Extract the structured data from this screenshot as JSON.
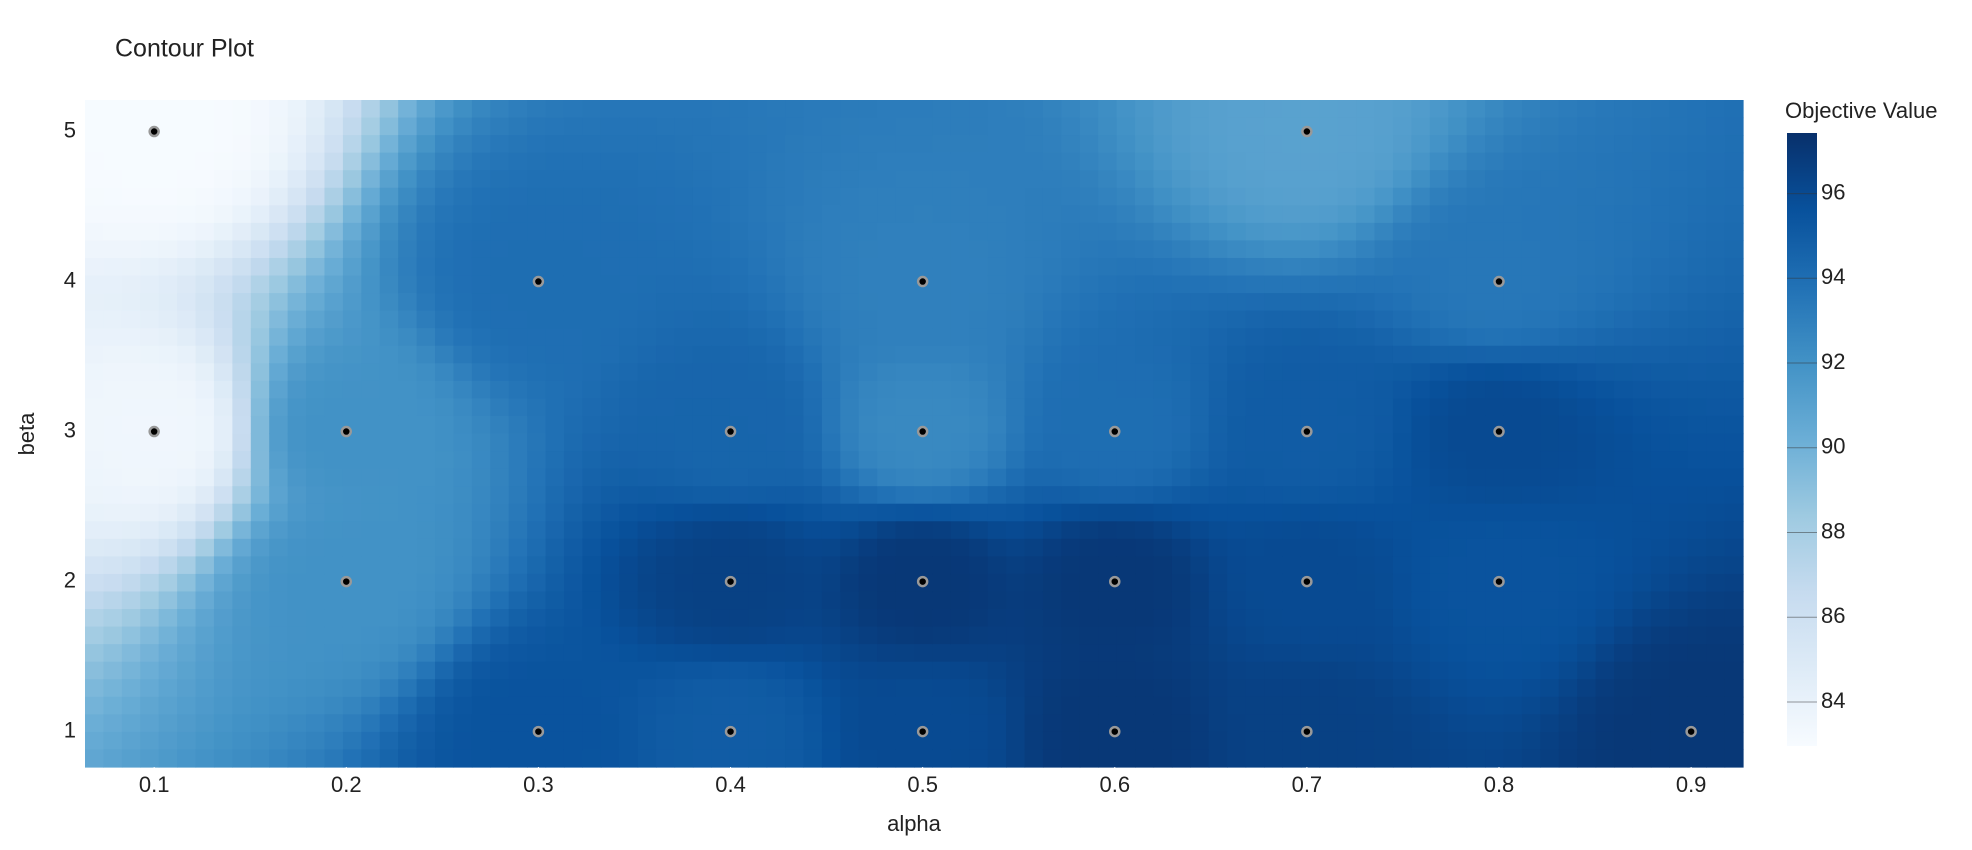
{
  "chart_data": {
    "type": "contour",
    "title": "Contour Plot",
    "x_label": "alpha",
    "y_label": "beta",
    "colorbar_title": "Objective Value",
    "x": [
      0.1,
      0.1,
      0.2,
      0.2,
      0.3,
      0.3,
      0.4,
      0.4,
      0.4,
      0.5,
      0.5,
      0.5,
      0.5,
      0.6,
      0.6,
      0.6,
      0.7,
      0.7,
      0.7,
      0.7,
      0.8,
      0.8,
      0.8,
      0.9
    ],
    "y": [
      5,
      3,
      3,
      2,
      4,
      1,
      3,
      2,
      1,
      4,
      3,
      2,
      1,
      3,
      2,
      1,
      5,
      3,
      2,
      1,
      4,
      3,
      2,
      1
    ],
    "z": [
      83,
      83.5,
      92,
      92,
      94,
      95.5,
      94.5,
      96.5,
      95,
      93,
      92.5,
      97,
      96,
      94,
      97,
      97,
      91,
      95,
      96,
      96.5,
      93.5,
      96,
      95.5,
      97
    ],
    "xlim": [
      0.064,
      0.927
    ],
    "ylim": [
      0.764,
      5.21
    ],
    "zlim": [
      82.96,
      97.43
    ],
    "xticks": [
      0.1,
      0.2,
      0.3,
      0.4,
      0.5,
      0.6,
      0.7,
      0.8,
      0.9
    ],
    "yticks": [
      1,
      2,
      3,
      4,
      5
    ],
    "zticks": [
      84,
      86,
      88,
      90,
      92,
      94,
      96
    ],
    "colorscale": [
      "#f7fbff",
      "#deebf7",
      "#c6dbef",
      "#9ecae1",
      "#6baed6",
      "#4292c6",
      "#2171b5",
      "#08519c",
      "#08306b"
    ]
  }
}
